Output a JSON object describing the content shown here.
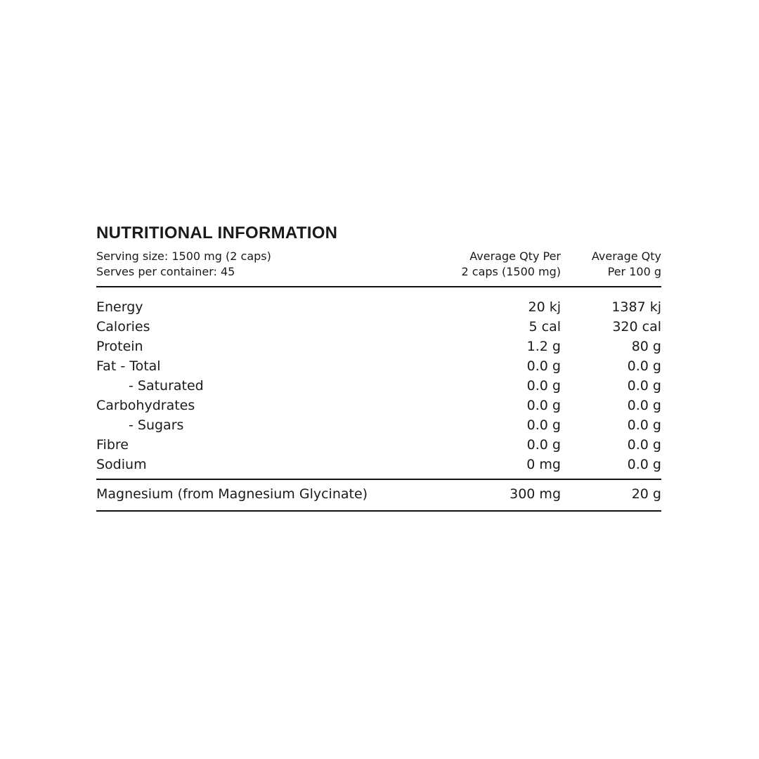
{
  "title": "NUTRITIONAL INFORMATION",
  "header": {
    "serving_size": "Serving size: 1500 mg (2 caps)",
    "serves_per_container": "Serves per container: 45",
    "col1_line1": "Average Qty Per",
    "col1_line2": "2 caps (1500 mg)",
    "col2_line1": "Average Qty",
    "col2_line2": "Per 100 g"
  },
  "rows": [
    {
      "label": "Energy",
      "per_serve": "20 kj",
      "per_100g": "1387 kj"
    },
    {
      "label": "Calories",
      "per_serve": "5 cal",
      "per_100g": "320 cal"
    },
    {
      "label": "Protein",
      "per_serve": "1.2 g",
      "per_100g": "80 g"
    },
    {
      "label": "Fat  - Total",
      "per_serve": "0.0 g",
      "per_100g": "0.0 g"
    },
    {
      "label": "- Saturated",
      "per_serve": "0.0 g",
      "per_100g": "0.0 g"
    },
    {
      "label": "Carbohydrates",
      "per_serve": "0.0 g",
      "per_100g": "0.0 g"
    },
    {
      "label": "- Sugars",
      "per_serve": "0.0 g",
      "per_100g": "0.0 g"
    },
    {
      "label": "Fibre",
      "per_serve": "0.0 g",
      "per_100g": "0.0 g"
    },
    {
      "label": "Sodium",
      "per_serve": "0 mg",
      "per_100g": "0.0 g"
    }
  ],
  "extra": {
    "label": "Magnesium (from Magnesium Glycinate)",
    "per_serve": "300 mg",
    "per_100g": "20 g"
  }
}
